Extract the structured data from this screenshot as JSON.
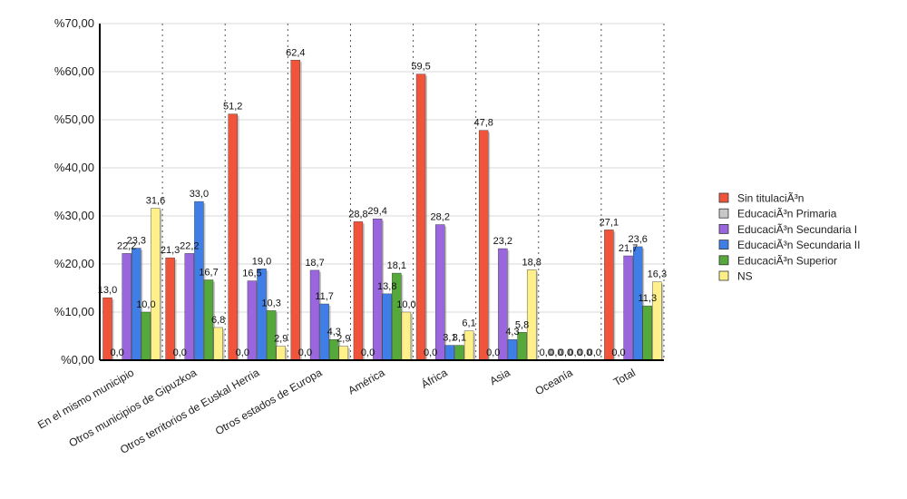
{
  "chart_data": {
    "type": "bar",
    "title": "",
    "xlabel": "",
    "ylabel": "",
    "ylim": [
      0,
      70
    ],
    "y_ticks": [
      "%0,00",
      "%10,00",
      "%20,00",
      "%30,00",
      "%40,00",
      "%50,00",
      "%60,00",
      "%70,00"
    ],
    "grid": "horizontal and vertical dotted",
    "legend_position": "right",
    "categories": [
      "En el mismo municipio",
      "Otros municipios de Gipuzkoa",
      "Otros territorios de Euskal Herria",
      "Otros estados de Europa",
      "América",
      "África",
      "Asia",
      "Oceanía",
      "Total"
    ],
    "series": [
      {
        "name": "Sin titulaciÃ³n",
        "color": "#f0553c",
        "values": [
          13.0,
          21.3,
          51.2,
          62.4,
          28.8,
          59.5,
          47.8,
          0.0,
          27.1
        ],
        "labels": [
          "13,0",
          "21,3",
          "51,2",
          "62,4",
          "28,8",
          "59,5",
          "47,8",
          "0,0",
          "27,1"
        ]
      },
      {
        "name": "EducaciÃ³n Primaria",
        "color": "#c8c8c8",
        "values": [
          0.0,
          0.0,
          0.0,
          0.0,
          0.0,
          0.0,
          0.0,
          0.0,
          0.0
        ],
        "labels": [
          "0,0",
          "0,0",
          "0,0",
          "0,0",
          "0,0",
          "0,0",
          "0,0",
          "0,0",
          "0,0"
        ]
      },
      {
        "name": "EducaciÃ³n Secundaria I",
        "color": "#9966dd",
        "values": [
          22.2,
          22.2,
          16.5,
          18.7,
          29.4,
          28.2,
          23.2,
          0.0,
          21.7
        ],
        "labels": [
          "22,2",
          "22,2",
          "16,5",
          "18,7",
          "29,4",
          "28,2",
          "23,2",
          "0,0",
          "21,7"
        ]
      },
      {
        "name": "EducaciÃ³n Secundaria II",
        "color": "#3f7ee6",
        "values": [
          23.3,
          33.0,
          19.0,
          11.7,
          13.8,
          3.1,
          4.3,
          0.0,
          23.6
        ],
        "labels": [
          "23,3",
          "33,0",
          "19,0",
          "11,7",
          "13,8",
          "3,1",
          "4,3",
          "0,0",
          "23,6"
        ]
      },
      {
        "name": "EducaciÃ³n Superior",
        "color": "#55a83a",
        "values": [
          10.0,
          16.7,
          10.3,
          4.3,
          18.1,
          3.1,
          5.8,
          0.0,
          11.3
        ],
        "labels": [
          "10,0",
          "16,7",
          "10,3",
          "4,3",
          "18,1",
          "3,1",
          "5,8",
          "0,0",
          "11,3"
        ]
      },
      {
        "name": "NS",
        "color": "#fff08a",
        "values": [
          31.6,
          6.8,
          2.9,
          2.9,
          10.0,
          6.1,
          18.8,
          0.0,
          16.3
        ],
        "labels": [
          "31,6",
          "6,8",
          "2,9",
          "2,9",
          "10,0",
          "6,1",
          "18,8",
          "0,0",
          "16,3"
        ]
      }
    ]
  }
}
